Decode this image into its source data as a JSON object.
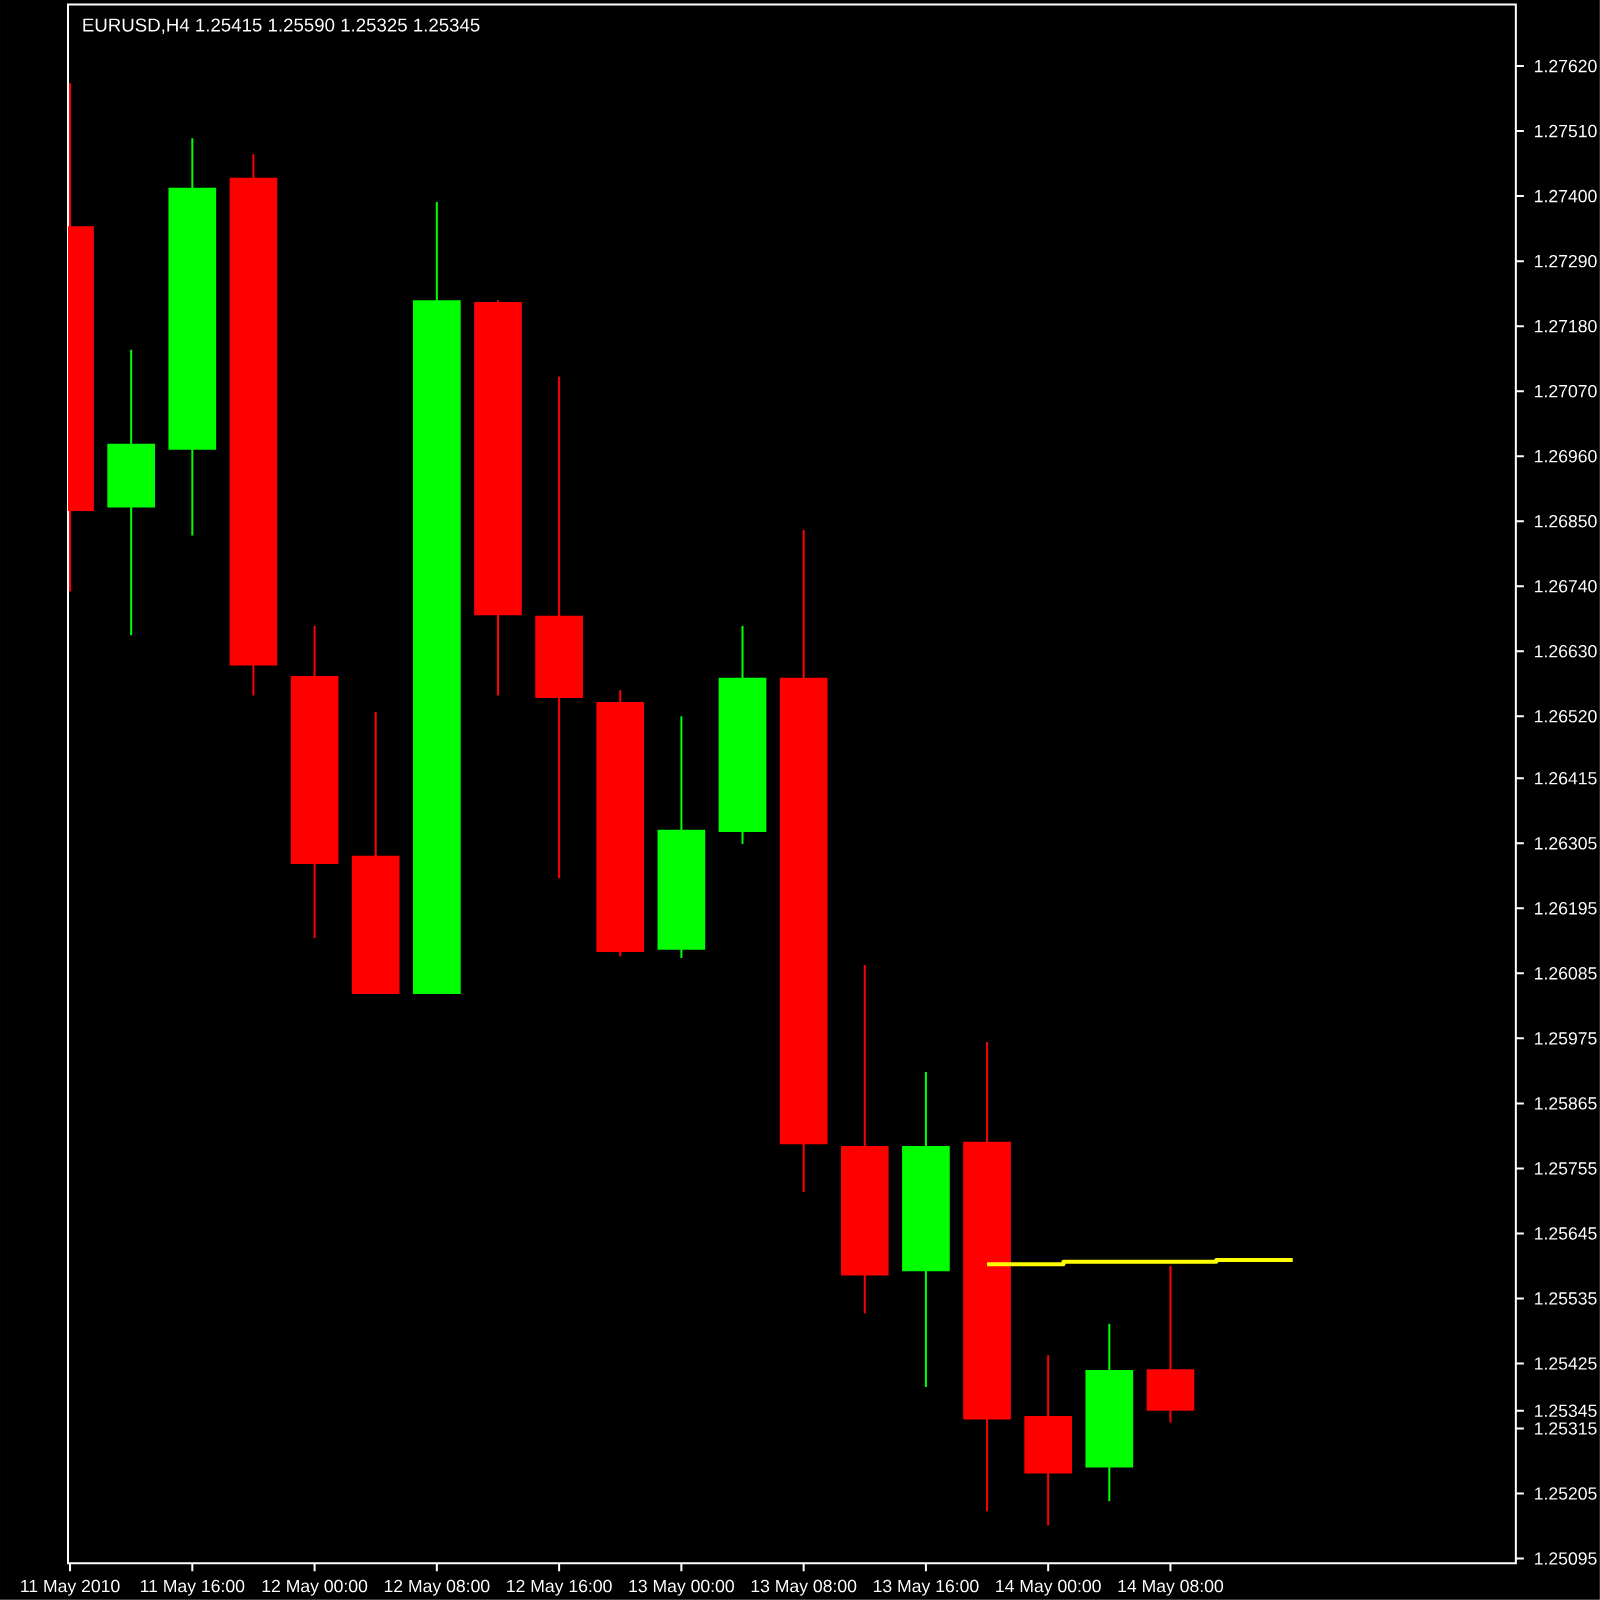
{
  "chart_data": {
    "type": "candlestick",
    "title": "EURUSD,H4  1.25415 1.25590 1.25325 1.25345",
    "series": [
      {
        "x": [
          "2010-05-11T08:00",
          "2010-05-11T12:00",
          "2010-05-11T16:00",
          "2010-05-11T20:00",
          "2010-05-12T00:00",
          "2010-05-12T04:00",
          "2010-05-12T08:00",
          "2010-05-12T12:00",
          "2010-05-12T16:00",
          "2010-05-12T20:00",
          "2010-05-13T00:00",
          "2010-05-13T04:00",
          "2010-05-13T08:00",
          "2010-05-13T12:00",
          "2010-05-13T16:00",
          "2010-05-13T20:00",
          "2010-05-14T00:00",
          "2010-05-14T04:00",
          "2010-05-14T08:00"
        ],
        "ohlc": [
          [
            1.27349,
            1.27591,
            1.26731,
            1.26867
          ],
          [
            1.26873,
            1.2714,
            1.26657,
            1.26981
          ],
          [
            1.26971,
            1.27498,
            1.26826,
            1.27414
          ],
          [
            1.27431,
            1.27471,
            1.26555,
            1.26606
          ],
          [
            1.26588,
            1.26673,
            1.26145,
            1.2627
          ],
          [
            1.26284,
            1.26527,
            1.2605,
            1.2605
          ],
          [
            1.2605,
            1.2739,
            1.2605,
            1.27224
          ],
          [
            1.27221,
            1.27224,
            1.26555,
            1.26691
          ],
          [
            1.2669,
            1.27095,
            1.26246,
            1.26551
          ],
          [
            1.26544,
            1.26564,
            1.26114,
            1.26121
          ],
          [
            1.26125,
            1.2652,
            1.26111,
            1.26328
          ],
          [
            1.26324,
            1.26673,
            1.26304,
            1.26585
          ],
          [
            1.26585,
            1.26835,
            1.25715,
            1.25796
          ],
          [
            1.25793,
            1.26099,
            1.2551,
            1.25574
          ],
          [
            1.25581,
            1.25918,
            1.25385,
            1.25793
          ],
          [
            1.258,
            1.25969,
            1.25175,
            1.2533
          ],
          [
            1.25336,
            1.25439,
            1.25151,
            1.25239
          ],
          [
            1.25249,
            1.25492,
            1.25192,
            1.25414
          ],
          [
            1.25415,
            1.2559,
            1.25325,
            1.25345
          ]
        ],
        "colors": [
          "#ff0000",
          "#00ff00",
          "#00ff00",
          "#ff0000",
          "#ff0000",
          "#ff0000",
          "#00ff00",
          "#ff0000",
          "#ff0000",
          "#ff0000",
          "#00ff00",
          "#00ff00",
          "#ff0000",
          "#ff0000",
          "#00ff00",
          "#ff0000",
          "#ff0000",
          "#00ff00",
          "#ff0000"
        ]
      },
      {
        "type": "line",
        "color": "#ffff00",
        "x": [
          "2010-05-13T20:00",
          "2010-05-14T01:00",
          "2010-05-14T01:00",
          "2010-05-14T11:00",
          "2010-05-14T11:00",
          "2010-05-14T16:00"
        ],
        "values": [
          1.25593,
          1.25593,
          1.25597,
          1.25597,
          1.256,
          1.256
        ]
      }
    ],
    "xlim": [
      "2010-05-11T07:52",
      "2010-05-15T06:36"
    ],
    "xticks": [
      {
        "value": "2010-05-11T08:00",
        "label": "11 May 2010"
      },
      {
        "value": "2010-05-11T16:00",
        "label": "11 May 16:00"
      },
      {
        "value": "2010-05-12T00:00",
        "label": "12 May 00:00"
      },
      {
        "value": "2010-05-12T08:00",
        "label": "12 May 08:00"
      },
      {
        "value": "2010-05-12T16:00",
        "label": "12 May 16:00"
      },
      {
        "value": "2010-05-13T00:00",
        "label": "13 May 00:00"
      },
      {
        "value": "2010-05-13T08:00",
        "label": "13 May 08:00"
      },
      {
        "value": "2010-05-13T16:00",
        "label": "13 May 16:00"
      },
      {
        "value": "2010-05-14T00:00",
        "label": "14 May 00:00"
      },
      {
        "value": "2010-05-14T08:00",
        "label": "14 May 08:00"
      }
    ],
    "ylim": [
      1.25087,
      1.27724
    ],
    "yticks": [
      {
        "value": 1.2762,
        "label": "1.27620"
      },
      {
        "value": 1.2751,
        "label": "1.27510"
      },
      {
        "value": 1.274,
        "label": "1.27400"
      },
      {
        "value": 1.2729,
        "label": "1.27290"
      },
      {
        "value": 1.2718,
        "label": "1.27180"
      },
      {
        "value": 1.2707,
        "label": "1.27070"
      },
      {
        "value": 1.2696,
        "label": "1.26960"
      },
      {
        "value": 1.2685,
        "label": "1.26850"
      },
      {
        "value": 1.2674,
        "label": "1.26740"
      },
      {
        "value": 1.2663,
        "label": "1.26630"
      },
      {
        "value": 1.2652,
        "label": "1.26520"
      },
      {
        "value": 1.26415,
        "label": "1.26415"
      },
      {
        "value": 1.26305,
        "label": "1.26305"
      },
      {
        "value": 1.26195,
        "label": "1.26195"
      },
      {
        "value": 1.26085,
        "label": "1.26085"
      },
      {
        "value": 1.25975,
        "label": "1.25975"
      },
      {
        "value": 1.25865,
        "label": "1.25865"
      },
      {
        "value": 1.25755,
        "label": "1.25755"
      },
      {
        "value": 1.25645,
        "label": "1.25645"
      },
      {
        "value": 1.25535,
        "label": "1.25535"
      },
      {
        "value": 1.25425,
        "label": "1.25425"
      },
      {
        "value": 1.25345,
        "label": "1.25345"
      },
      {
        "value": 1.25315,
        "label": "1.25315"
      },
      {
        "value": 1.25205,
        "label": "1.25205"
      },
      {
        "value": 1.25095,
        "label": "1.25095"
      }
    ],
    "grid": false
  }
}
